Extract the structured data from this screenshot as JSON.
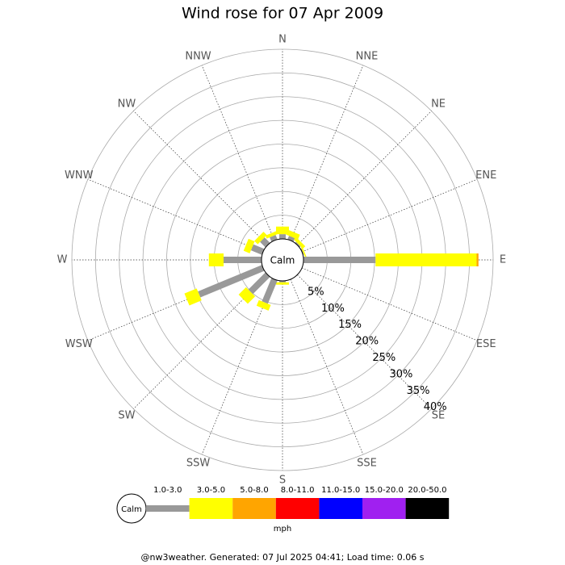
{
  "chart_data": {
    "type": "wind-rose",
    "title": "Wind rose for 07 Apr 2009",
    "categories": [
      "N",
      "NNE",
      "NE",
      "ENE",
      "E",
      "ESE",
      "SE",
      "SSE",
      "S",
      "SSW",
      "SW",
      "WSW",
      "W",
      "WNW",
      "NW",
      "NNW"
    ],
    "series": [
      {
        "name": "1.0-3.0",
        "color": "#999999",
        "values": [
          1.0,
          0.8,
          0.3,
          0.2,
          15.2,
          0,
          0,
          0,
          0.3,
          5.3,
          5.1,
          14.6,
          8.0,
          2.5,
          1.6,
          1.0
        ]
      },
      {
        "name": "3.0-5.0",
        "color": "#ffff00",
        "values": [
          1.6,
          1.1,
          0.7,
          0.3,
          21.3,
          0,
          0,
          0,
          0.5,
          1.3,
          2.2,
          2.8,
          3.1,
          1.4,
          1.0,
          0.7
        ]
      },
      {
        "name": "5.0-8.0",
        "color": "#ffa500",
        "values": [
          0,
          0,
          0,
          0,
          0.4,
          0,
          0,
          0,
          0,
          0,
          0,
          0,
          0,
          0,
          0,
          0
        ]
      },
      {
        "name": "8.0-11.0",
        "color": "#ff0000",
        "values": [
          0,
          0,
          0,
          0,
          0,
          0,
          0,
          0,
          0,
          0,
          0,
          0,
          0,
          0,
          0,
          0
        ]
      },
      {
        "name": "11.0-15.0",
        "color": "#0000ff",
        "values": [
          0,
          0,
          0,
          0,
          0,
          0,
          0,
          0,
          0,
          0,
          0,
          0,
          0,
          0,
          0,
          0
        ]
      },
      {
        "name": "15.0-20.0",
        "color": "#a020f0",
        "values": [
          0,
          0,
          0,
          0,
          0,
          0,
          0,
          0,
          0,
          0,
          0,
          0,
          0,
          0,
          0,
          0
        ]
      },
      {
        "name": "20.0-50.0",
        "color": "#000000",
        "values": [
          0,
          0,
          0,
          0,
          0,
          0,
          0,
          0,
          0,
          0,
          0,
          0,
          0,
          0,
          0,
          0
        ]
      }
    ],
    "rlim": [
      0,
      40
    ],
    "rticks": [
      {
        "value": 5,
        "label": "5%"
      },
      {
        "value": 10,
        "label": "10%"
      },
      {
        "value": 15,
        "label": "15%"
      },
      {
        "value": 20,
        "label": "20%"
      },
      {
        "value": 25,
        "label": "25%"
      },
      {
        "value": 30,
        "label": "30%"
      },
      {
        "value": 35,
        "label": "35%"
      },
      {
        "value": 40,
        "label": "40%"
      }
    ],
    "calm_label": "Calm",
    "unit_label": "mph"
  },
  "footer": "@nw3weather. Generated: 07 Jul 2025 04:41; Load time: 0.06 s"
}
